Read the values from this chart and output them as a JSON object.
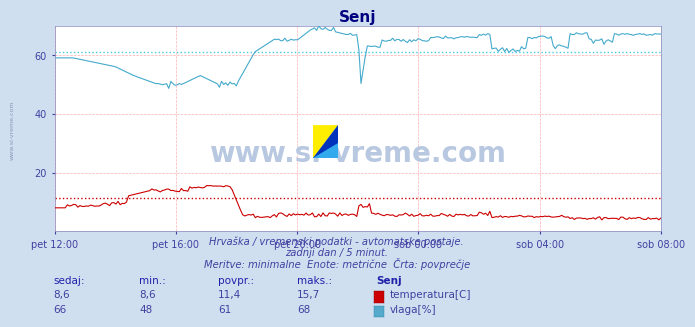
{
  "title": "Senj",
  "title_color": "#000080",
  "bg_color": "#d0dff0",
  "plot_bg_color": "#ffffff",
  "grid_color": "#ffb0b0",
  "xlabel_color": "#4040a0",
  "watermark_text": "www.si-vreme.com",
  "watermark_color": "#b8c8e0",
  "left_label": "www.si-vreme.com",
  "temp_color": "#cc0000",
  "humidity_color": "#44aacc",
  "humidity_avg_color": "#44ccdd",
  "temp_avg_value": 11.4,
  "humidity_avg_value": 61,
  "ylim": [
    0,
    70
  ],
  "yticks": [
    20,
    40,
    60
  ],
  "x_ticks_labels": [
    "pet 12:00",
    "pet 16:00",
    "pet 20:00",
    "sob 00:00",
    "sob 04:00",
    "sob 08:00"
  ],
  "footer_line1": "Hrvaška / vremenski podatki - avtomatske postaje.",
  "footer_line2": "zadnji dan / 5 minut.",
  "footer_line3": "Meritve: minimalne  Enote: metrične  Črta: povprečje",
  "table_headers": [
    "sedaj:",
    "min.:",
    "povpr.:",
    "maks.:",
    "Senj"
  ],
  "table_row1": [
    "8,6",
    "8,6",
    "11,4",
    "15,7",
    "temperatura[C]"
  ],
  "table_row2": [
    "66",
    "48",
    "61",
    "68",
    "vlaga[%]"
  ],
  "n_points": 288
}
